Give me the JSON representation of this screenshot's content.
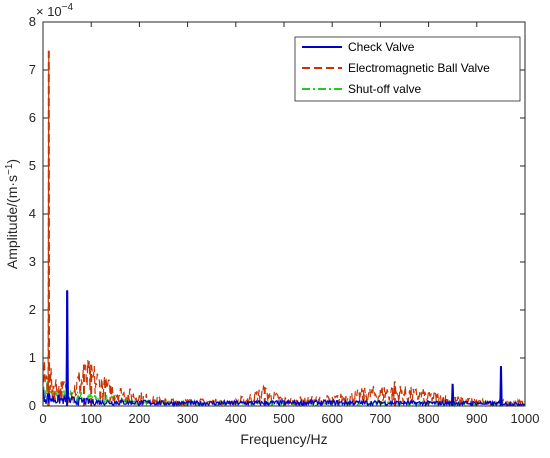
{
  "chart_data": {
    "type": "line",
    "title": "",
    "xlabel": "Frequency/Hz",
    "ylabel_main": "Amplitude/(m·s",
    "ylabel_sup": "−1",
    "ylabel_close": ")",
    "y_exponent_base": "× 10",
    "y_exponent_power": "−4",
    "xlim": [
      0,
      1000
    ],
    "ylim": [
      0,
      8
    ],
    "y_scale_note": "values in units of 1e-4",
    "xticks": [
      0,
      100,
      200,
      300,
      400,
      500,
      600,
      700,
      800,
      900,
      1000
    ],
    "yticks": [
      0,
      1,
      2,
      3,
      4,
      5,
      6,
      7,
      8
    ],
    "grid": false,
    "legend_position": "top-right",
    "series": [
      {
        "name": "Check Valve",
        "color": "#0000cc",
        "style": "solid",
        "peaks": [
          {
            "x": 50,
            "y": 2.4
          },
          {
            "x": 850,
            "y": 0.45
          },
          {
            "x": 950,
            "y": 0.82
          }
        ],
        "baseline": [
          {
            "x": 0,
            "y": 0.3
          },
          {
            "x": 20,
            "y": 0.2
          },
          {
            "x": 100,
            "y": 0.12
          },
          {
            "x": 300,
            "y": 0.08
          },
          {
            "x": 600,
            "y": 0.1
          },
          {
            "x": 900,
            "y": 0.08
          },
          {
            "x": 1000,
            "y": 0.06
          }
        ]
      },
      {
        "name": "Electromagnetic Ball Valve",
        "color": "#cc3300",
        "style": "dashed",
        "peaks": [
          {
            "x": 12,
            "y": 7.4
          },
          {
            "x": 85,
            "y": 0.85
          },
          {
            "x": 100,
            "y": 0.85
          },
          {
            "x": 460,
            "y": 0.38
          },
          {
            "x": 730,
            "y": 0.5
          }
        ],
        "baseline": [
          {
            "x": 0,
            "y": 0.8
          },
          {
            "x": 30,
            "y": 0.5
          },
          {
            "x": 60,
            "y": 0.4
          },
          {
            "x": 80,
            "y": 0.75
          },
          {
            "x": 100,
            "y": 0.8
          },
          {
            "x": 130,
            "y": 0.5
          },
          {
            "x": 160,
            "y": 0.35
          },
          {
            "x": 200,
            "y": 0.25
          },
          {
            "x": 240,
            "y": 0.15
          },
          {
            "x": 300,
            "y": 0.12
          },
          {
            "x": 400,
            "y": 0.12
          },
          {
            "x": 460,
            "y": 0.35
          },
          {
            "x": 500,
            "y": 0.15
          },
          {
            "x": 600,
            "y": 0.18
          },
          {
            "x": 650,
            "y": 0.28
          },
          {
            "x": 720,
            "y": 0.4
          },
          {
            "x": 780,
            "y": 0.3
          },
          {
            "x": 850,
            "y": 0.18
          },
          {
            "x": 920,
            "y": 0.12
          },
          {
            "x": 1000,
            "y": 0.1
          }
        ]
      },
      {
        "name": "Shut-off valve",
        "color": "#22cc22",
        "style": "dashdot",
        "peaks": [
          {
            "x": 10,
            "y": 0.6
          },
          {
            "x": 50,
            "y": 0.9
          }
        ],
        "baseline": [
          {
            "x": 0,
            "y": 0.35
          },
          {
            "x": 40,
            "y": 0.3
          },
          {
            "x": 80,
            "y": 0.25
          },
          {
            "x": 120,
            "y": 0.2
          },
          {
            "x": 200,
            "y": 0.1
          },
          {
            "x": 400,
            "y": 0.07
          },
          {
            "x": 700,
            "y": 0.08
          },
          {
            "x": 1000,
            "y": 0.06
          }
        ]
      }
    ]
  }
}
